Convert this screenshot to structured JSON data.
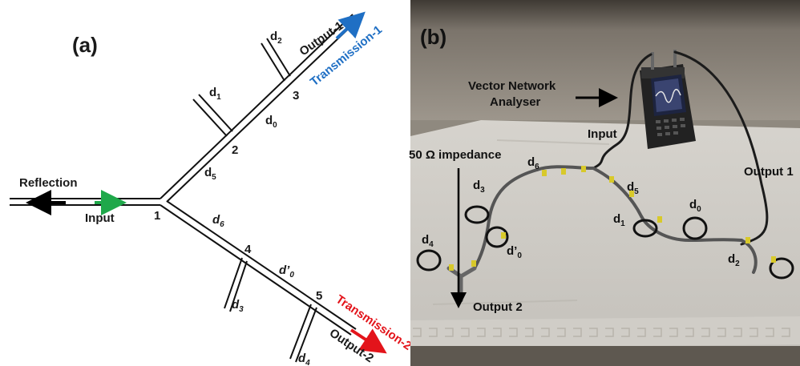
{
  "panel_a": {
    "panel_label": "(a)",
    "reflection": "Reflection",
    "input": "Input",
    "output1": "Output-1",
    "output2": "Output-2",
    "transmission1": "Transmission-1",
    "transmission2": "Transmission-2",
    "nodes": {
      "n1": "1",
      "n2": "2",
      "n3": "3",
      "n4": "4",
      "n5": "5"
    },
    "d0": "d",
    "d0_sub": "0",
    "d1": "d",
    "d1_sub": "1",
    "d2": "d",
    "d2_sub": "2",
    "d3": "d",
    "d3_sub": "3",
    "d4": "d",
    "d4_sub": "4",
    "d5": "d",
    "d5_sub": "5",
    "d6": "d",
    "d6_sub": "6",
    "d0p": "d’",
    "d0p_sub": "0",
    "colors": {
      "transmission1": "#1f6fc4",
      "transmission2": "#e3141b",
      "input_arrow": "#1fa84a",
      "reflection_arrow": "#000000"
    }
  },
  "panel_b": {
    "panel_label": "(b)",
    "vna": "Vector Network",
    "vna_line2": "Analyser",
    "input": "Input",
    "output1": "Output 1",
    "output2": "Output 2",
    "impedance": "50 Ω impedance",
    "d0": "d",
    "d0_sub": "0",
    "d1": "d",
    "d1_sub": "1",
    "d2": "d",
    "d2_sub": "2",
    "d3": "d",
    "d3_sub": "3",
    "d4": "d",
    "d4_sub": "4",
    "d5": "d",
    "d5_sub": "5",
    "d6": "d",
    "d6_sub": "6",
    "d0p": "d’",
    "d0p_sub": "0"
  }
}
